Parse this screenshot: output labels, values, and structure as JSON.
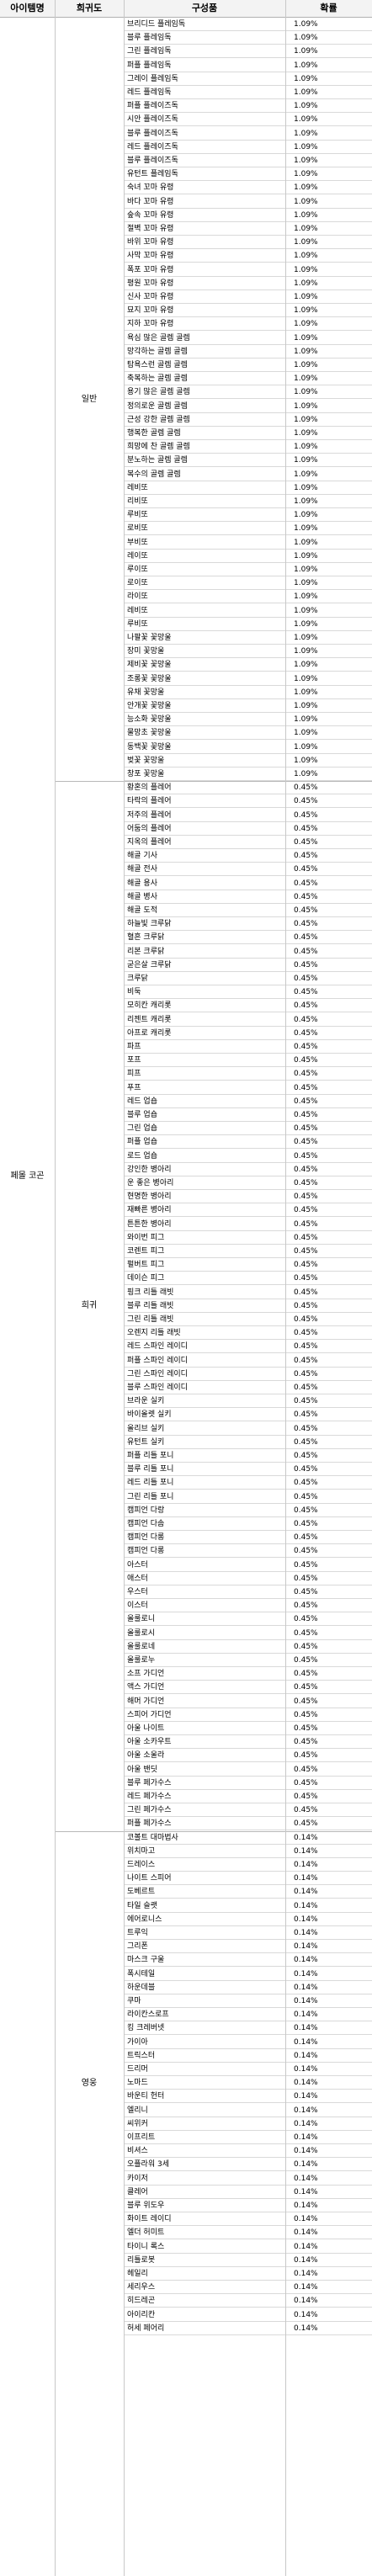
{
  "headers": {
    "name": "아이템명",
    "rarity": "희귀도",
    "items": "구성품",
    "prob": "확률"
  },
  "item_name": "페몰 코곤",
  "groups": [
    {
      "rarity": "일반",
      "items": [
        {
          "name": "브리디드 플레임독",
          "prob": "1.09%"
        },
        {
          "name": "블루 플레임독",
          "prob": "1.09%"
        },
        {
          "name": "그린 플레임독",
          "prob": "1.09%"
        },
        {
          "name": "퍼플 플레임독",
          "prob": "1.09%"
        },
        {
          "name": "그레이 플레임독",
          "prob": "1.09%"
        },
        {
          "name": "레드 플레임독",
          "prob": "1.09%"
        },
        {
          "name": "퍼플 플레이즈독",
          "prob": "1.09%"
        },
        {
          "name": "시안 플레이즈독",
          "prob": "1.09%"
        },
        {
          "name": "블루 플레이즈독",
          "prob": "1.09%"
        },
        {
          "name": "레드 플레이즈독",
          "prob": "1.09%"
        },
        {
          "name": "블루 플레이즈독",
          "prob": "1.09%"
        },
        {
          "name": "유턴트 플레임독",
          "prob": "1.09%"
        },
        {
          "name": "숙녀 꼬마 유령",
          "prob": "1.09%"
        },
        {
          "name": "바다 꼬마 유령",
          "prob": "1.09%"
        },
        {
          "name": "숲속 꼬마 유령",
          "prob": "1.09%"
        },
        {
          "name": "절벽 꼬마 유령",
          "prob": "1.09%"
        },
        {
          "name": "바위 꼬마 유령",
          "prob": "1.09%"
        },
        {
          "name": "사막 꼬마 유령",
          "prob": "1.09%"
        },
        {
          "name": "폭포 꼬마 유령",
          "prob": "1.09%"
        },
        {
          "name": "평원 꼬마 유령",
          "prob": "1.09%"
        },
        {
          "name": "신사 꼬마 유령",
          "prob": "1.09%"
        },
        {
          "name": "묘지 꼬마 유령",
          "prob": "1.09%"
        },
        {
          "name": "지하 꼬마 유령",
          "prob": "1.09%"
        },
        {
          "name": "욕심 많은 골렘 골렘",
          "prob": "1.09%"
        },
        {
          "name": "망각하는 골렘 골렘",
          "prob": "1.09%"
        },
        {
          "name": "탐욕스런 골렘 골렘",
          "prob": "1.09%"
        },
        {
          "name": "축복하는 골렘 골렘",
          "prob": "1.09%"
        },
        {
          "name": "용기 많은 골렘 골렘",
          "prob": "1.09%"
        },
        {
          "name": "정의로운 골렘 골렘",
          "prob": "1.09%"
        },
        {
          "name": "근성 강한 골렘 골렘",
          "prob": "1.09%"
        },
        {
          "name": "행복한 골렘 골렘",
          "prob": "1.09%"
        },
        {
          "name": "희망에 찬 골렘 골렘",
          "prob": "1.09%"
        },
        {
          "name": "분노하는 골렘 골렘",
          "prob": "1.09%"
        },
        {
          "name": "복수의 골렘 골렘",
          "prob": "1.09%"
        },
        {
          "name": "레비또",
          "prob": "1.09%"
        },
        {
          "name": "리비또",
          "prob": "1.09%"
        },
        {
          "name": "루비또",
          "prob": "1.09%"
        },
        {
          "name": "로비또",
          "prob": "1.09%"
        },
        {
          "name": "부비또",
          "prob": "1.09%"
        },
        {
          "name": "레이또",
          "prob": "1.09%"
        },
        {
          "name": "루이또",
          "prob": "1.09%"
        },
        {
          "name": "로이또",
          "prob": "1.09%"
        },
        {
          "name": "라이또",
          "prob": "1.09%"
        },
        {
          "name": "레비또",
          "prob": "1.09%"
        },
        {
          "name": "루비또",
          "prob": "1.09%"
        },
        {
          "name": "나팔꽃 꽃망울",
          "prob": "1.09%"
        },
        {
          "name": "장미 꽃망울",
          "prob": "1.09%"
        },
        {
          "name": "제비꽃 꽃망울",
          "prob": "1.09%"
        },
        {
          "name": "조롱꽃 꽃망울",
          "prob": "1.09%"
        },
        {
          "name": "유채 꽃망울",
          "prob": "1.09%"
        },
        {
          "name": "안개꽃 꽃망울",
          "prob": "1.09%"
        },
        {
          "name": "능소화 꽃망울",
          "prob": "1.09%"
        },
        {
          "name": "물망초 꽃망울",
          "prob": "1.09%"
        },
        {
          "name": "동백꽃 꽃망울",
          "prob": "1.09%"
        },
        {
          "name": "벚꽃 꽃망울",
          "prob": "1.09%"
        },
        {
          "name": "창포 꽃망울",
          "prob": "1.09%"
        }
      ]
    },
    {
      "rarity": "희귀",
      "items": [
        {
          "name": "황혼의 플레어",
          "prob": "0.45%"
        },
        {
          "name": "타락의 플레어",
          "prob": "0.45%"
        },
        {
          "name": "저주의 플레어",
          "prob": "0.45%"
        },
        {
          "name": "어둠의 플레어",
          "prob": "0.45%"
        },
        {
          "name": "지옥의 플레어",
          "prob": "0.45%"
        },
        {
          "name": "해골 기사",
          "prob": "0.45%"
        },
        {
          "name": "해골 전사",
          "prob": "0.45%"
        },
        {
          "name": "해골 용사",
          "prob": "0.45%"
        },
        {
          "name": "해골 병사",
          "prob": "0.45%"
        },
        {
          "name": "해골 도적",
          "prob": "0.45%"
        },
        {
          "name": "하늘빛 크루닭",
          "prob": "0.45%"
        },
        {
          "name": "혈흔 크루닭",
          "prob": "0.45%"
        },
        {
          "name": "리본 크루닭",
          "prob": "0.45%"
        },
        {
          "name": "굳은살 크루닭",
          "prob": "0.45%"
        },
        {
          "name": "크루닭",
          "prob": "0.45%"
        },
        {
          "name": "비둑",
          "prob": "0.45%"
        },
        {
          "name": "모히칸 캐리롯",
          "prob": "0.45%"
        },
        {
          "name": "리젠트 캐리롯",
          "prob": "0.45%"
        },
        {
          "name": "아프로 캐리롯",
          "prob": "0.45%"
        },
        {
          "name": "파프",
          "prob": "0.45%"
        },
        {
          "name": "포프",
          "prob": "0.45%"
        },
        {
          "name": "피프",
          "prob": "0.45%"
        },
        {
          "name": "푸프",
          "prob": "0.45%"
        },
        {
          "name": "레드 업숍",
          "prob": "0.45%"
        },
        {
          "name": "블루 업숍",
          "prob": "0.45%"
        },
        {
          "name": "그린 업숍",
          "prob": "0.45%"
        },
        {
          "name": "퍼플 업숍",
          "prob": "0.45%"
        },
        {
          "name": "로드 업숍",
          "prob": "0.45%"
        },
        {
          "name": "강인한 병아리",
          "prob": "0.45%"
        },
        {
          "name": "운 좋은 병아리",
          "prob": "0.45%"
        },
        {
          "name": "현명한 병아리",
          "prob": "0.45%"
        },
        {
          "name": "재빠른 병아리",
          "prob": "0.45%"
        },
        {
          "name": "튼튼한 병아리",
          "prob": "0.45%"
        },
        {
          "name": "와이번 피그",
          "prob": "0.45%"
        },
        {
          "name": "코렌트 피그",
          "prob": "0.45%"
        },
        {
          "name": "펄버트 피그",
          "prob": "0.45%"
        },
        {
          "name": "데이슨 피그",
          "prob": "0.45%"
        },
        {
          "name": "핑크 리틀 래빗",
          "prob": "0.45%"
        },
        {
          "name": "블루 리틀 래빗",
          "prob": "0.45%"
        },
        {
          "name": "그린 리틀 래빗",
          "prob": "0.45%"
        },
        {
          "name": "오렌지 리틀 래빗",
          "prob": "0.45%"
        },
        {
          "name": "레드 스파인 레이디",
          "prob": "0.45%"
        },
        {
          "name": "퍼플 스파인 레이디",
          "prob": "0.45%"
        },
        {
          "name": "그린 스파인 레이디",
          "prob": "0.45%"
        },
        {
          "name": "블루 스파인 레이디",
          "prob": "0.45%"
        },
        {
          "name": "브라운 실키",
          "prob": "0.45%"
        },
        {
          "name": "바이올렛 실키",
          "prob": "0.45%"
        },
        {
          "name": "올리브 실키",
          "prob": "0.45%"
        },
        {
          "name": "유턴트 실키",
          "prob": "0.45%"
        },
        {
          "name": "퍼플 리틀 포니",
          "prob": "0.45%"
        },
        {
          "name": "블루 리틀 포니",
          "prob": "0.45%"
        },
        {
          "name": "레드 리틀 포니",
          "prob": "0.45%"
        },
        {
          "name": "그린 리틀 포니",
          "prob": "0.45%"
        },
        {
          "name": "캠피언 다랑",
          "prob": "0.45%"
        },
        {
          "name": "캠피언 다솜",
          "prob": "0.45%"
        },
        {
          "name": "캠피언 다롱",
          "prob": "0.45%"
        },
        {
          "name": "캠피언 다롱",
          "prob": "0.45%"
        },
        {
          "name": "아스터",
          "prob": "0.45%"
        },
        {
          "name": "애스터",
          "prob": "0.45%"
        },
        {
          "name": "우스터",
          "prob": "0.45%"
        },
        {
          "name": "이스터",
          "prob": "0.45%"
        },
        {
          "name": "올룰로니",
          "prob": "0.45%"
        },
        {
          "name": "올룰로시",
          "prob": "0.45%"
        },
        {
          "name": "올룰로네",
          "prob": "0.45%"
        },
        {
          "name": "올룰로누",
          "prob": "0.45%"
        },
        {
          "name": "소프 가디언",
          "prob": "0.45%"
        },
        {
          "name": "액스 가디언",
          "prob": "0.45%"
        },
        {
          "name": "해머 가디언",
          "prob": "0.45%"
        },
        {
          "name": "스피어 가디언",
          "prob": "0.45%"
        },
        {
          "name": "아울 나이트",
          "prob": "0.45%"
        },
        {
          "name": "아울 소카우트",
          "prob": "0.45%"
        },
        {
          "name": "아울 소울라",
          "prob": "0.45%"
        },
        {
          "name": "아울 밴딧",
          "prob": "0.45%"
        },
        {
          "name": "블루 페가수스",
          "prob": "0.45%"
        },
        {
          "name": "레드 페가수스",
          "prob": "0.45%"
        },
        {
          "name": "그린 페가수스",
          "prob": "0.45%"
        },
        {
          "name": "퍼플 페가수스",
          "prob": "0.45%"
        }
      ]
    },
    {
      "rarity": "영웅",
      "items": [
        {
          "name": "코볼트 대마법사",
          "prob": "0.14%"
        },
        {
          "name": "위치마고",
          "prob": "0.14%"
        },
        {
          "name": "드레이스",
          "prob": "0.14%"
        },
        {
          "name": "나이트 스피어",
          "prob": "0.14%"
        },
        {
          "name": "도베르트",
          "prob": "0.14%"
        },
        {
          "name": "타일 슬랫",
          "prob": "0.14%"
        },
        {
          "name": "에어로니스",
          "prob": "0.14%"
        },
        {
          "name": "트루익",
          "prob": "0.14%"
        },
        {
          "name": "그리폰",
          "prob": "0.14%"
        },
        {
          "name": "마스크 구울",
          "prob": "0.14%"
        },
        {
          "name": "폭시테일",
          "prob": "0.14%"
        },
        {
          "name": "하운데블",
          "prob": "0.14%"
        },
        {
          "name": "쿠마",
          "prob": "0.14%"
        },
        {
          "name": "라이칸스로프",
          "prob": "0.14%"
        },
        {
          "name": "킹 크레버넷",
          "prob": "0.14%"
        },
        {
          "name": "가이아",
          "prob": "0.14%"
        },
        {
          "name": "트릭스터",
          "prob": "0.14%"
        },
        {
          "name": "드리머",
          "prob": "0.14%"
        },
        {
          "name": "노마드",
          "prob": "0.14%"
        },
        {
          "name": "바운티 헌터",
          "prob": "0.14%"
        },
        {
          "name": "엘리니",
          "prob": "0.14%"
        },
        {
          "name": "씨위커",
          "prob": "0.14%"
        },
        {
          "name": "이프리트",
          "prob": "0.14%"
        },
        {
          "name": "비셔스",
          "prob": "0.14%"
        },
        {
          "name": "오플라워 3세",
          "prob": "0.14%"
        },
        {
          "name": "카이저",
          "prob": "0.14%"
        },
        {
          "name": "클레어",
          "prob": "0.14%"
        },
        {
          "name": "블루 위도우",
          "prob": "0.14%"
        },
        {
          "name": "화이트 레이디",
          "prob": "0.14%"
        },
        {
          "name": "엘더 허미트",
          "prob": "0.14%"
        },
        {
          "name": "타이니 록스",
          "prob": "0.14%"
        },
        {
          "name": "리틀로봇",
          "prob": "0.14%"
        },
        {
          "name": "헤일리",
          "prob": "0.14%"
        },
        {
          "name": "세리우스",
          "prob": "0.14%"
        },
        {
          "name": "히드레곤",
          "prob": "0.14%"
        },
        {
          "name": "아이리칸",
          "prob": "0.14%"
        },
        {
          "name": "허세 페어리",
          "prob": "0.14%"
        }
      ]
    }
  ]
}
